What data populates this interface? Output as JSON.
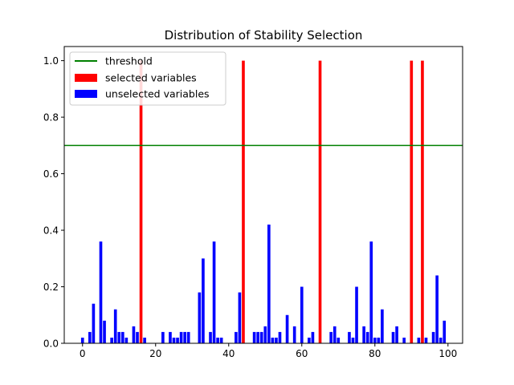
{
  "chart_data": {
    "type": "bar",
    "title": "Distribution of Stability Selection",
    "xlabel": "",
    "ylabel": "",
    "xlim": [
      -5,
      104
    ],
    "ylim": [
      0,
      1.05
    ],
    "x_ticks": [
      0,
      20,
      40,
      60,
      80,
      100
    ],
    "x_tick_labels": [
      "0",
      "20",
      "40",
      "60",
      "80",
      "100"
    ],
    "y_ticks": [
      0.0,
      0.2,
      0.4,
      0.6,
      0.8,
      1.0
    ],
    "y_tick_labels": [
      "0.0",
      "0.2",
      "0.4",
      "0.6",
      "0.8",
      "1.0"
    ],
    "grid": false,
    "legend_position": "top-left",
    "threshold": {
      "name": "threshold",
      "value": 0.7,
      "color": "#008000"
    },
    "series": [
      {
        "name": "selected variables",
        "color": "#ff0000",
        "x": [
          16,
          44,
          65,
          90,
          93
        ],
        "values": [
          1.0,
          1.0,
          1.0,
          1.0,
          1.0
        ]
      },
      {
        "name": "unselected variables",
        "color": "#0000ff",
        "x": [
          0,
          2,
          3,
          5,
          6,
          8,
          9,
          10,
          11,
          12,
          14,
          15,
          17,
          22,
          24,
          25,
          26,
          27,
          28,
          29,
          32,
          33,
          35,
          36,
          37,
          38,
          42,
          43,
          47,
          48,
          49,
          50,
          51,
          52,
          53,
          54,
          56,
          58,
          60,
          62,
          63,
          68,
          69,
          70,
          73,
          74,
          75,
          77,
          78,
          79,
          80,
          81,
          82,
          85,
          86,
          88,
          92,
          94,
          96,
          97,
          98,
          99
        ],
        "values": [
          0.02,
          0.04,
          0.14,
          0.36,
          0.08,
          0.02,
          0.12,
          0.04,
          0.04,
          0.02,
          0.06,
          0.04,
          0.02,
          0.04,
          0.04,
          0.02,
          0.02,
          0.04,
          0.04,
          0.04,
          0.18,
          0.3,
          0.04,
          0.36,
          0.02,
          0.02,
          0.04,
          0.18,
          0.04,
          0.04,
          0.04,
          0.06,
          0.42,
          0.02,
          0.02,
          0.04,
          0.1,
          0.06,
          0.2,
          0.02,
          0.04,
          0.04,
          0.06,
          0.02,
          0.04,
          0.02,
          0.2,
          0.06,
          0.04,
          0.36,
          0.02,
          0.02,
          0.12,
          0.04,
          0.06,
          0.02,
          0.02,
          0.02,
          0.04,
          0.24,
          0.02,
          0.08
        ]
      }
    ]
  }
}
